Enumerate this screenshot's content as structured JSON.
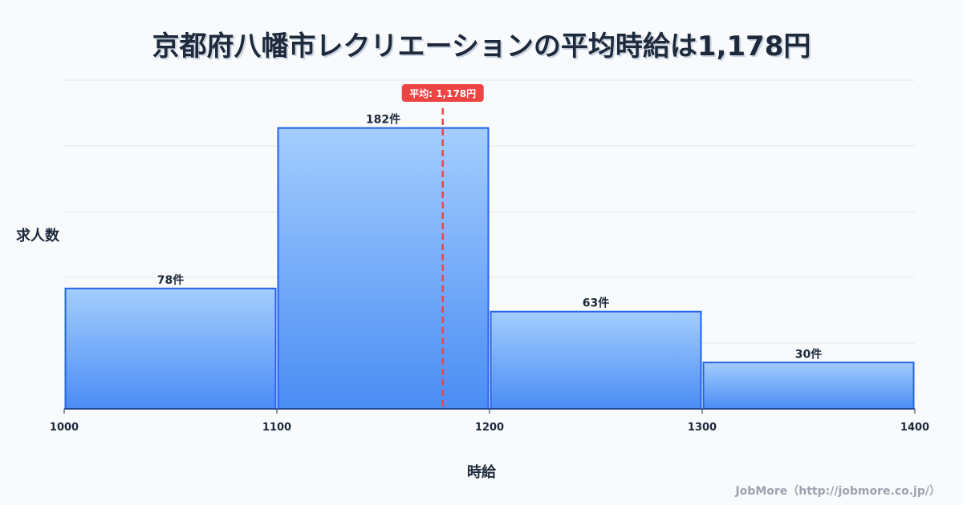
{
  "chart_data": {
    "type": "bar",
    "title": "京都府八幡市レクリエーションの平均時給は1,178円",
    "xlabel": "時給",
    "ylabel": "求人数",
    "bins": [
      [
        1000,
        1100
      ],
      [
        1100,
        1200
      ],
      [
        1200,
        1300
      ],
      [
        1300,
        1400
      ]
    ],
    "values": [
      78,
      182,
      63,
      30
    ],
    "value_labels": [
      "78件",
      "182件",
      "63件",
      "30件"
    ],
    "x_ticks": [
      "1000",
      "1100",
      "1200",
      "1300",
      "1400"
    ],
    "xlim": [
      1000,
      1400
    ],
    "ylim": [
      0,
      213
    ],
    "grid": true,
    "mean": 1178,
    "mean_label": "平均: 1,178円",
    "colors": {
      "bar_top": "#a3cdfd",
      "bar_bottom": "#4b8df5",
      "bar_stroke": "#2563eb",
      "mean": "#ef4444"
    }
  },
  "credit": "JobMore（http://jobmore.co.jp/）"
}
